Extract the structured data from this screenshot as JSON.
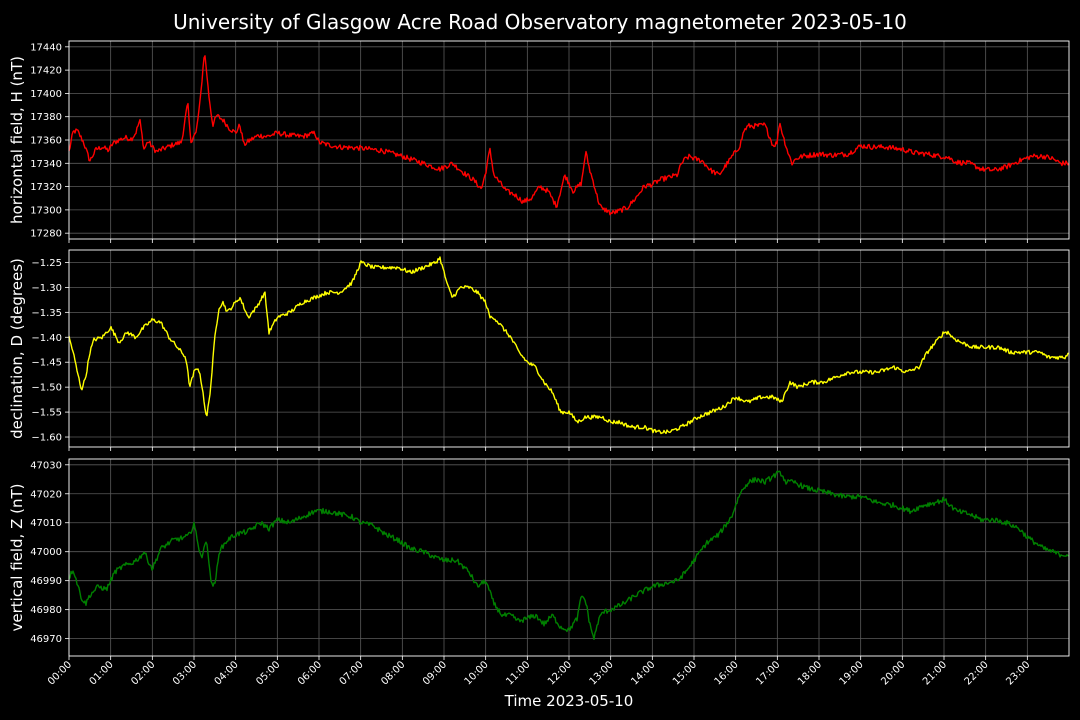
{
  "figure": {
    "title": "University of Glasgow Acre Road Observatory magnetometer 2023-05-10",
    "background": "#000000",
    "grid_color": "#5a5a5a"
  },
  "chart_data": [
    {
      "type": "line",
      "ylabel": "horizontal field, H (nT)",
      "color": "#ff0000",
      "ylim": [
        17275,
        17445
      ],
      "yticks": [
        17280,
        17300,
        17320,
        17340,
        17360,
        17380,
        17400,
        17420,
        17440
      ],
      "ytick_labels": [
        "17280",
        "17300",
        "17320",
        "17340",
        "17360",
        "17380",
        "17400",
        "17420",
        "17440"
      ],
      "xlim": [
        0,
        24
      ],
      "grid": true,
      "noise": 2.2,
      "series": [
        {
          "x": [
            0.0,
            0.1,
            0.2,
            0.35,
            0.5,
            0.65,
            0.8,
            0.95,
            1.05,
            1.2,
            1.35,
            1.5,
            1.6,
            1.7,
            1.8,
            1.9,
            2.0,
            2.1,
            2.3,
            2.5,
            2.7,
            2.85,
            2.92,
            2.98,
            3.05,
            3.15,
            3.25,
            3.3,
            3.35,
            3.45,
            3.55,
            3.7,
            3.85,
            4.0,
            4.1,
            4.2,
            4.35,
            4.55,
            4.75,
            5.0,
            5.3,
            5.6,
            5.9,
            6.0,
            6.2,
            6.5,
            7.0,
            7.5,
            8.0,
            8.5,
            8.9,
            9.2,
            9.5,
            9.7,
            9.9,
            10.0,
            10.1,
            10.2,
            10.35,
            10.5,
            10.7,
            10.9,
            11.1,
            11.3,
            11.5,
            11.7,
            11.9,
            12.1,
            12.3,
            12.4,
            12.5,
            12.6,
            12.7,
            12.8,
            12.9,
            13.0,
            13.2,
            13.4,
            13.6,
            13.8,
            14.0,
            14.2,
            14.4,
            14.6,
            14.7,
            14.8,
            14.9,
            15.0,
            15.2,
            15.4,
            15.6,
            15.8,
            16.0,
            16.1,
            16.2,
            16.3,
            16.5,
            16.7,
            16.9,
            17.0,
            17.05,
            17.15,
            17.25,
            17.35,
            17.45,
            17.6,
            17.8,
            18.0,
            18.3,
            18.7,
            19.0,
            19.3,
            19.6,
            20.0,
            20.3,
            20.6,
            20.9,
            21.0,
            21.1,
            21.3,
            21.6,
            21.9,
            22.2,
            22.5,
            22.8,
            23.1,
            23.4,
            23.6,
            23.8,
            24.0
          ],
          "y": [
            17350,
            17367,
            17368,
            17358,
            17342,
            17352,
            17354,
            17351,
            17357,
            17360,
            17362,
            17361,
            17366,
            17377,
            17352,
            17359,
            17354,
            17350,
            17353,
            17356,
            17358,
            17392,
            17358,
            17363,
            17366,
            17394,
            17436,
            17420,
            17400,
            17373,
            17381,
            17377,
            17370,
            17366,
            17373,
            17356,
            17360,
            17364,
            17363,
            17366,
            17364,
            17363,
            17366,
            17358,
            17356,
            17354,
            17353,
            17351,
            17346,
            17340,
            17335,
            17340,
            17331,
            17326,
            17318,
            17332,
            17352,
            17330,
            17323,
            17316,
            17313,
            17307,
            17310,
            17320,
            17316,
            17303,
            17330,
            17316,
            17323,
            17350,
            17334,
            17322,
            17308,
            17300,
            17300,
            17297,
            17299,
            17302,
            17310,
            17320,
            17322,
            17326,
            17328,
            17330,
            17340,
            17344,
            17346,
            17344,
            17342,
            17334,
            17330,
            17340,
            17350,
            17355,
            17368,
            17372,
            17372,
            17373,
            17355,
            17358,
            17376,
            17362,
            17350,
            17340,
            17344,
            17346,
            17347,
            17348,
            17347,
            17348,
            17355,
            17354,
            17354,
            17352,
            17349,
            17348,
            17346,
            17346,
            17345,
            17341,
            17340,
            17335,
            17334,
            17337,
            17342,
            17346,
            17346,
            17344,
            17340,
            17340
          ]
        }
      ]
    },
    {
      "type": "line",
      "ylabel": "declination, D (degrees)",
      "color": "#ffff00",
      "ylim": [
        -1.62,
        -1.225
      ],
      "yticks": [
        -1.6,
        -1.55,
        -1.5,
        -1.45,
        -1.4,
        -1.35,
        -1.3,
        -1.25
      ],
      "ytick_labels": [
        "−1.60",
        "−1.55",
        "−1.50",
        "−1.45",
        "−1.40",
        "−1.35",
        "−1.30",
        "−1.25"
      ],
      "xlim": [
        0,
        24
      ],
      "grid": true,
      "noise": 0.004,
      "series": [
        {
          "x": [
            0.0,
            0.1,
            0.2,
            0.3,
            0.4,
            0.5,
            0.6,
            0.8,
            1.0,
            1.2,
            1.4,
            1.6,
            1.8,
            2.0,
            2.2,
            2.4,
            2.6,
            2.8,
            2.9,
            3.0,
            3.1,
            3.2,
            3.3,
            3.4,
            3.5,
            3.6,
            3.7,
            3.8,
            3.9,
            4.1,
            4.3,
            4.5,
            4.7,
            4.8,
            5.0,
            5.3,
            5.6,
            5.9,
            6.2,
            6.5,
            6.8,
            7.0,
            7.3,
            7.6,
            7.9,
            8.2,
            8.5,
            8.8,
            8.9,
            9.0,
            9.1,
            9.2,
            9.4,
            9.6,
            9.8,
            10.0,
            10.1,
            10.2,
            10.4,
            10.6,
            10.8,
            11.0,
            11.2,
            11.4,
            11.6,
            11.8,
            12.0,
            12.2,
            12.4,
            12.6,
            12.8,
            13.0,
            13.2,
            13.5,
            13.8,
            14.1,
            14.4,
            14.7,
            14.9,
            15.1,
            15.4,
            15.7,
            16.0,
            16.3,
            16.6,
            16.9,
            17.1,
            17.3,
            17.5,
            17.8,
            18.1,
            18.4,
            18.7,
            19.0,
            19.4,
            19.8,
            20.1,
            20.4,
            20.6,
            20.8,
            20.9,
            21.0,
            21.1,
            21.2,
            21.4,
            21.7,
            22.0,
            22.3,
            22.6,
            22.9,
            23.1,
            23.3,
            23.5,
            23.7,
            23.9,
            24.0
          ],
          "y": [
            -1.4,
            -1.43,
            -1.47,
            -1.505,
            -1.48,
            -1.43,
            -1.405,
            -1.4,
            -1.38,
            -1.41,
            -1.39,
            -1.4,
            -1.38,
            -1.365,
            -1.37,
            -1.4,
            -1.42,
            -1.44,
            -1.5,
            -1.47,
            -1.46,
            -1.5,
            -1.565,
            -1.5,
            -1.4,
            -1.34,
            -1.33,
            -1.35,
            -1.34,
            -1.32,
            -1.36,
            -1.34,
            -1.31,
            -1.39,
            -1.36,
            -1.35,
            -1.33,
            -1.32,
            -1.31,
            -1.31,
            -1.29,
            -1.25,
            -1.26,
            -1.26,
            -1.26,
            -1.27,
            -1.26,
            -1.25,
            -1.24,
            -1.27,
            -1.3,
            -1.32,
            -1.3,
            -1.3,
            -1.31,
            -1.33,
            -1.36,
            -1.36,
            -1.38,
            -1.4,
            -1.43,
            -1.45,
            -1.46,
            -1.49,
            -1.51,
            -1.55,
            -1.55,
            -1.57,
            -1.56,
            -1.56,
            -1.56,
            -1.57,
            -1.57,
            -1.58,
            -1.58,
            -1.59,
            -1.59,
            -1.58,
            -1.57,
            -1.56,
            -1.55,
            -1.54,
            -1.52,
            -1.53,
            -1.52,
            -1.52,
            -1.53,
            -1.49,
            -1.5,
            -1.49,
            -1.49,
            -1.48,
            -1.47,
            -1.47,
            -1.47,
            -1.46,
            -1.47,
            -1.46,
            -1.43,
            -1.41,
            -1.4,
            -1.39,
            -1.39,
            -1.4,
            -1.41,
            -1.42,
            -1.42,
            -1.42,
            -1.43,
            -1.43,
            -1.43,
            -1.43,
            -1.44,
            -1.44,
            -1.44,
            -1.43
          ]
        }
      ]
    },
    {
      "type": "line",
      "ylabel": "vertical field, Z (nT)",
      "color": "#008000",
      "ylim": [
        46964,
        47032
      ],
      "yticks": [
        46970,
        46980,
        46990,
        47000,
        47010,
        47020,
        47030
      ],
      "ytick_labels": [
        "46970",
        "46980",
        "46990",
        "47000",
        "47010",
        "47020",
        "47030"
      ],
      "xlim": [
        0,
        24
      ],
      "grid": true,
      "noise": 0.9,
      "series": [
        {
          "x": [
            0.0,
            0.1,
            0.2,
            0.3,
            0.4,
            0.5,
            0.7,
            0.9,
            1.1,
            1.3,
            1.5,
            1.7,
            1.8,
            2.0,
            2.2,
            2.5,
            2.8,
            2.9,
            3.0,
            3.1,
            3.2,
            3.3,
            3.4,
            3.5,
            3.6,
            3.8,
            4.0,
            4.3,
            4.6,
            4.8,
            5.0,
            5.3,
            5.6,
            5.9,
            6.2,
            6.5,
            6.8,
            7.0,
            7.3,
            7.6,
            7.9,
            8.2,
            8.5,
            8.8,
            9.0,
            9.3,
            9.6,
            9.8,
            10.0,
            10.2,
            10.4,
            10.6,
            10.8,
            11.0,
            11.2,
            11.4,
            11.6,
            11.8,
            12.0,
            12.1,
            12.2,
            12.3,
            12.4,
            12.5,
            12.6,
            12.7,
            12.8,
            13.0,
            13.3,
            13.6,
            14.0,
            14.3,
            14.6,
            14.8,
            15.0,
            15.3,
            15.6,
            15.9,
            16.1,
            16.3,
            16.5,
            16.7,
            16.9,
            17.0,
            17.1,
            17.2,
            17.4,
            17.7,
            18.0,
            18.3,
            18.6,
            19.0,
            19.4,
            19.8,
            20.2,
            20.5,
            20.8,
            21.0,
            21.3,
            21.6,
            21.9,
            22.2,
            22.5,
            22.8,
            23.0,
            23.2,
            23.4,
            23.6,
            23.8,
            24.0
          ],
          "y": [
            46991,
            46994,
            46989,
            46984,
            46982,
            46985,
            46988,
            46987,
            46993,
            46995,
            46996,
            46998,
            47000,
            46994,
            47001,
            47004,
            47005,
            47006,
            47010,
            47002,
            46998,
            47005,
            46990,
            46988,
            47000,
            47004,
            47006,
            47007,
            47010,
            47008,
            47011,
            47010,
            47012,
            47014,
            47014,
            47013,
            47012,
            47010,
            47009,
            47006,
            47004,
            47001,
            47000,
            46998,
            46997,
            46997,
            46993,
            46988,
            46990,
            46982,
            46978,
            46978,
            46976,
            46977,
            46978,
            46975,
            46978,
            46974,
            46973,
            46975,
            46977,
            46985,
            46983,
            46975,
            46970,
            46976,
            46979,
            46980,
            46982,
            46985,
            46988,
            46989,
            46990,
            46993,
            46997,
            47003,
            47006,
            47012,
            47020,
            47024,
            47025,
            47024,
            47026,
            47027,
            47027,
            47024,
            47024,
            47022,
            47021,
            47020,
            47019,
            47019,
            47017,
            47016,
            47014,
            47016,
            47017,
            47018,
            47014,
            47013,
            47011,
            47011,
            47010,
            47008,
            47005,
            47003,
            47001,
            47000,
            46999,
            46999
          ]
        }
      ]
    }
  ],
  "x_axis": {
    "label": "Time 2023-05-10",
    "tick_labels": [
      "00:00",
      "01:00",
      "02:00",
      "03:00",
      "04:00",
      "05:00",
      "06:00",
      "07:00",
      "08:00",
      "09:00",
      "10:00",
      "11:00",
      "12:00",
      "13:00",
      "14:00",
      "15:00",
      "16:00",
      "17:00",
      "18:00",
      "19:00",
      "20:00",
      "21:00",
      "22:00",
      "23:00"
    ]
  }
}
